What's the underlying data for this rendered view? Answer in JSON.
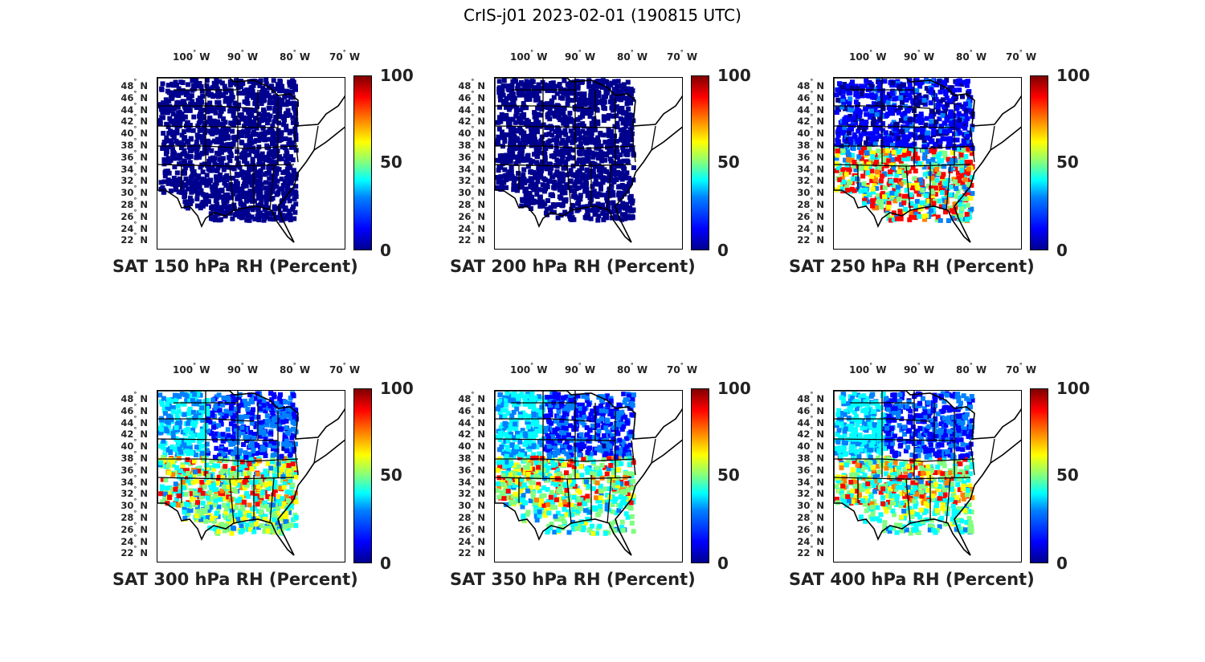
{
  "figure_title": "CrIS-j01 2023-02-01 (190815 UTC)",
  "lon_ticks": [
    "100",
    "90",
    "80",
    "70"
  ],
  "lon_hemisphere": "W",
  "lat_ticks": [
    "48",
    "46",
    "44",
    "42",
    "40",
    "38",
    "36",
    "34",
    "32",
    "30",
    "28",
    "26",
    "24",
    "22"
  ],
  "lat_hemisphere": "N",
  "degree_symbol": "°",
  "colorbar": {
    "ticks": [
      "100",
      "50",
      "0"
    ],
    "colors": [
      "#00008f",
      "#0000ff",
      "#0080ff",
      "#00ffff",
      "#80ff80",
      "#ffff00",
      "#ff8000",
      "#ff0000",
      "#800000"
    ]
  },
  "panels": [
    {
      "title": "SAT 150 hPa RH (Percent)"
    },
    {
      "title": "SAT 200 hPa RH (Percent)"
    },
    {
      "title": "SAT 250 hPa RH (Percent)"
    },
    {
      "title": "SAT 300 hPa RH (Percent)"
    },
    {
      "title": "SAT 350 hPa RH (Percent)"
    },
    {
      "title": "SAT 400 hPa RH (Percent)"
    }
  ]
}
